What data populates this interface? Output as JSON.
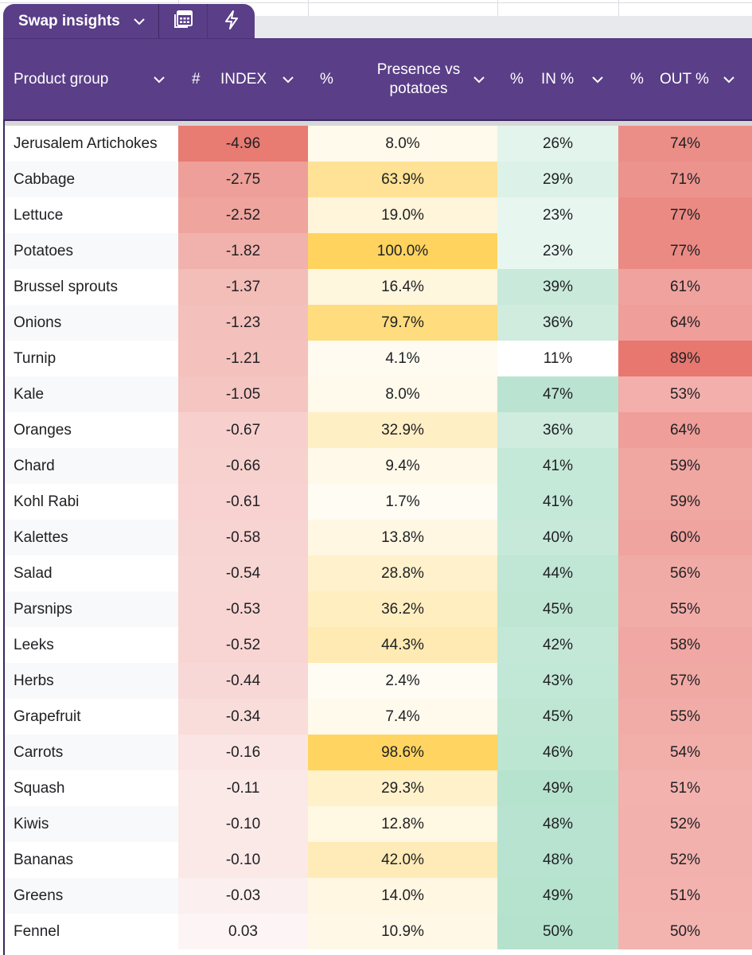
{
  "tab": {
    "title": "Swap insights",
    "dropdown_icon": "chevron-down-icon",
    "buttons": [
      {
        "name": "calculator-button",
        "icon": "calculator-icon"
      },
      {
        "name": "lightning-button",
        "icon": "lightning-icon"
      }
    ]
  },
  "header": {
    "columns": [
      {
        "type_symbol": "",
        "label": "Product group"
      },
      {
        "type_symbol": "#",
        "label": "INDEX"
      },
      {
        "type_symbol": "%",
        "label_line1": "Presence vs",
        "label_line2": "potatoes"
      },
      {
        "type_symbol": "%",
        "label": "IN %"
      },
      {
        "type_symbol": "%",
        "label": "OUT %"
      }
    ]
  },
  "colors": {
    "header_bg": "#5a3e87",
    "index_scale": [
      "#fdf5f5",
      "#e87b72"
    ],
    "presence_scale": [
      "#fffdf7",
      "#ffd35e"
    ],
    "in_scale": [
      "#ffffff",
      "#b4e2cd"
    ],
    "out_scale": [
      "#f3b4b0",
      "#e8776f"
    ]
  },
  "rows": [
    {
      "product": "Jerusalem Artichokes",
      "index": "-4.96",
      "presence": "8.0%",
      "in": "26%",
      "out": "74%"
    },
    {
      "product": "Cabbage",
      "index": "-2.75",
      "presence": "63.9%",
      "in": "29%",
      "out": "71%"
    },
    {
      "product": "Lettuce",
      "index": "-2.52",
      "presence": "19.0%",
      "in": "23%",
      "out": "77%"
    },
    {
      "product": "Potatoes",
      "index": "-1.82",
      "presence": "100.0%",
      "in": "23%",
      "out": "77%"
    },
    {
      "product": "Brussel sprouts",
      "index": "-1.37",
      "presence": "16.4%",
      "in": "39%",
      "out": "61%"
    },
    {
      "product": "Onions",
      "index": "-1.23",
      "presence": "79.7%",
      "in": "36%",
      "out": "64%"
    },
    {
      "product": "Turnip",
      "index": "-1.21",
      "presence": "4.1%",
      "in": "11%",
      "out": "89%"
    },
    {
      "product": "Kale",
      "index": "-1.05",
      "presence": "8.0%",
      "in": "47%",
      "out": "53%"
    },
    {
      "product": "Oranges",
      "index": "-0.67",
      "presence": "32.9%",
      "in": "36%",
      "out": "64%"
    },
    {
      "product": "Chard",
      "index": "-0.66",
      "presence": "9.4%",
      "in": "41%",
      "out": "59%"
    },
    {
      "product": "Kohl Rabi",
      "index": "-0.61",
      "presence": "1.7%",
      "in": "41%",
      "out": "59%"
    },
    {
      "product": "Kalettes",
      "index": "-0.58",
      "presence": "13.8%",
      "in": "40%",
      "out": "60%"
    },
    {
      "product": "Salad",
      "index": "-0.54",
      "presence": "28.8%",
      "in": "44%",
      "out": "56%"
    },
    {
      "product": "Parsnips",
      "index": "-0.53",
      "presence": "36.2%",
      "in": "45%",
      "out": "55%"
    },
    {
      "product": "Leeks",
      "index": "-0.52",
      "presence": "44.3%",
      "in": "42%",
      "out": "58%"
    },
    {
      "product": "Herbs",
      "index": "-0.44",
      "presence": "2.4%",
      "in": "43%",
      "out": "57%"
    },
    {
      "product": "Grapefruit",
      "index": "-0.34",
      "presence": "7.4%",
      "in": "45%",
      "out": "55%"
    },
    {
      "product": "Carrots",
      "index": "-0.16",
      "presence": "98.6%",
      "in": "46%",
      "out": "54%"
    },
    {
      "product": "Squash",
      "index": "-0.11",
      "presence": "29.3%",
      "in": "49%",
      "out": "51%"
    },
    {
      "product": "Kiwis",
      "index": "-0.10",
      "presence": "12.8%",
      "in": "48%",
      "out": "52%"
    },
    {
      "product": "Bananas",
      "index": "-0.10",
      "presence": "42.0%",
      "in": "48%",
      "out": "52%"
    },
    {
      "product": "Greens",
      "index": "-0.03",
      "presence": "14.0%",
      "in": "49%",
      "out": "51%"
    },
    {
      "product": "Fennel",
      "index": "0.03",
      "presence": "10.9%",
      "in": "50%",
      "out": "50%"
    }
  ]
}
